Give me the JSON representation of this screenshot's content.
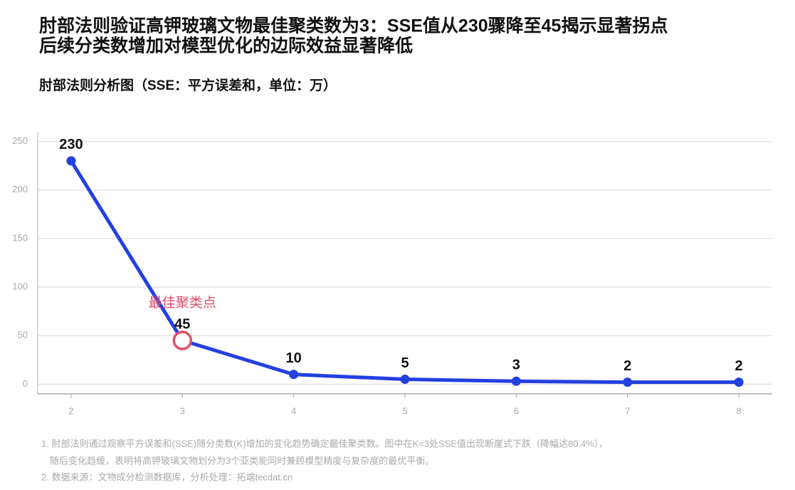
{
  "chart_data": {
    "type": "line",
    "title": [
      "肘部法则验证高钾玻璃文物最佳聚类数为3：SSE值从230骤降至45揭示显著拐点",
      "后续分类数增加对模型优化的边际效益显著降低"
    ],
    "subtitle": "肘部法则分析图（SSE：平方误差和，单位：万）",
    "x": [
      2,
      3,
      4,
      5,
      6,
      7,
      8
    ],
    "series": [
      {
        "name": "SSE",
        "color": "#2340e0",
        "values": [
          230,
          45,
          10,
          5,
          3,
          2,
          2
        ]
      }
    ],
    "xlim": [
      1.7,
      8.3
    ],
    "xticks": [
      2,
      3,
      4,
      5,
      6,
      7,
      8
    ],
    "ylim": [
      -10,
      260
    ],
    "yticks": [
      0,
      50,
      100,
      150,
      200,
      250
    ],
    "grid": true,
    "annotation": {
      "x": 3,
      "y": 45,
      "text": "最佳聚类点",
      "color": "#e0506a"
    },
    "notes": [
      "1. 肘部法则通过观察平方误差和(SSE)随分类数(K)增加的变化趋势确定最佳聚类数。图中在K=3处SSE值出现断崖式下跌（降幅达80.4%），",
      "随后变化趋缓，表明将高钾玻璃文物划分为3个亚类能同时兼顾模型精度与复杂度的最优平衡。",
      "2. 数据来源：文物成分检测数据库，分析处理：拓端tecdat.cn"
    ]
  }
}
